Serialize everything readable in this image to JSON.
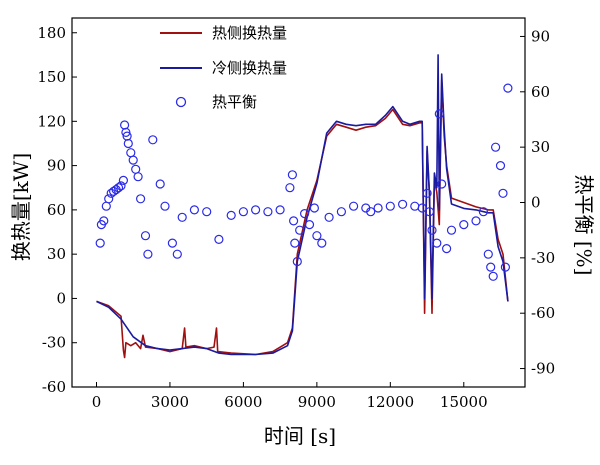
{
  "chart_data": {
    "type": "line",
    "xlabel": "时间 [s]",
    "ylabel": "换热量[kW]",
    "y2label": "热平衡 [%]",
    "xlim": [
      -1000,
      17500
    ],
    "ylim": [
      -60,
      190
    ],
    "y2lim": [
      -100,
      100
    ],
    "x_ticks": [
      0,
      3000,
      6000,
      9000,
      12000,
      15000
    ],
    "y_ticks": [
      -60,
      -30,
      0,
      30,
      60,
      90,
      120,
      150,
      180
    ],
    "y2_ticks": [
      -90,
      -60,
      -30,
      0,
      30,
      60,
      90
    ],
    "legend_position": "top-center",
    "colors": {
      "hot": "#a01010",
      "cold": "#1a1aa0",
      "balance": "#2a2ae8",
      "axis": "#000000"
    },
    "series": [
      {
        "name": "热侧换热量",
        "axis": "left",
        "style": "line",
        "points": [
          [
            0,
            -2
          ],
          [
            500,
            -5
          ],
          [
            1000,
            -12
          ],
          [
            1100,
            -35
          ],
          [
            1150,
            -40
          ],
          [
            1200,
            -30
          ],
          [
            1400,
            -32
          ],
          [
            1600,
            -30
          ],
          [
            1800,
            -34
          ],
          [
            1900,
            -25
          ],
          [
            2000,
            -33
          ],
          [
            2500,
            -34
          ],
          [
            3000,
            -36
          ],
          [
            3500,
            -34
          ],
          [
            3600,
            -20
          ],
          [
            3650,
            -33
          ],
          [
            4000,
            -32
          ],
          [
            4500,
            -34
          ],
          [
            4800,
            -33
          ],
          [
            4900,
            -20
          ],
          [
            4950,
            -36
          ],
          [
            5500,
            -37
          ],
          [
            6500,
            -38
          ],
          [
            7200,
            -36
          ],
          [
            7800,
            -30
          ],
          [
            8000,
            -20
          ],
          [
            8200,
            30
          ],
          [
            8600,
            60
          ],
          [
            9000,
            80
          ],
          [
            9400,
            110
          ],
          [
            9800,
            118
          ],
          [
            10200,
            116
          ],
          [
            10600,
            114
          ],
          [
            11000,
            116
          ],
          [
            11400,
            117
          ],
          [
            11800,
            122
          ],
          [
            12100,
            128
          ],
          [
            12500,
            118
          ],
          [
            12800,
            117
          ],
          [
            13200,
            119
          ],
          [
            13300,
            119
          ],
          [
            13400,
            -10
          ],
          [
            13500,
            100
          ],
          [
            13600,
            70
          ],
          [
            13700,
            -10
          ],
          [
            13800,
            80
          ],
          [
            13900,
            72
          ],
          [
            14000,
            50
          ],
          [
            14100,
            148
          ],
          [
            14200,
            110
          ],
          [
            14300,
            90
          ],
          [
            14500,
            68
          ],
          [
            15000,
            65
          ],
          [
            15500,
            62
          ],
          [
            16000,
            60
          ],
          [
            16200,
            60
          ],
          [
            16400,
            40
          ],
          [
            16600,
            30
          ],
          [
            16800,
            -2
          ]
        ]
      },
      {
        "name": "冷侧换热量",
        "axis": "left",
        "style": "line",
        "points": [
          [
            0,
            -2
          ],
          [
            500,
            -6
          ],
          [
            1000,
            -14
          ],
          [
            1500,
            -26
          ],
          [
            2000,
            -32
          ],
          [
            2500,
            -34
          ],
          [
            3000,
            -35
          ],
          [
            3500,
            -34
          ],
          [
            4000,
            -33
          ],
          [
            4500,
            -34
          ],
          [
            5000,
            -37
          ],
          [
            5500,
            -38
          ],
          [
            6500,
            -38
          ],
          [
            7200,
            -37
          ],
          [
            7800,
            -32
          ],
          [
            8000,
            -22
          ],
          [
            8200,
            25
          ],
          [
            8600,
            55
          ],
          [
            9000,
            78
          ],
          [
            9400,
            112
          ],
          [
            9800,
            120
          ],
          [
            10200,
            118
          ],
          [
            10600,
            117
          ],
          [
            11000,
            118
          ],
          [
            11400,
            118
          ],
          [
            11800,
            124
          ],
          [
            12100,
            130
          ],
          [
            12500,
            120
          ],
          [
            12800,
            118
          ],
          [
            13200,
            120
          ],
          [
            13300,
            120
          ],
          [
            13400,
            0
          ],
          [
            13500,
            103
          ],
          [
            13600,
            70
          ],
          [
            13700,
            0
          ],
          [
            13800,
            85
          ],
          [
            13900,
            75
          ],
          [
            13950,
            165
          ],
          [
            14000,
            60
          ],
          [
            14100,
            152
          ],
          [
            14200,
            115
          ],
          [
            14300,
            88
          ],
          [
            14500,
            64
          ],
          [
            15000,
            61
          ],
          [
            15500,
            60
          ],
          [
            16000,
            58
          ],
          [
            16200,
            58
          ],
          [
            16400,
            35
          ],
          [
            16600,
            25
          ],
          [
            16800,
            -2
          ]
        ]
      },
      {
        "name": "热平衡",
        "axis": "right",
        "style": "markers",
        "points": [
          [
            150,
            -22
          ],
          [
            200,
            -12
          ],
          [
            300,
            -10
          ],
          [
            400,
            -2
          ],
          [
            500,
            2
          ],
          [
            600,
            5
          ],
          [
            700,
            6
          ],
          [
            800,
            7
          ],
          [
            900,
            8
          ],
          [
            1000,
            9
          ],
          [
            1100,
            12
          ],
          [
            1150,
            42
          ],
          [
            1200,
            38
          ],
          [
            1250,
            36
          ],
          [
            1300,
            32
          ],
          [
            1400,
            27
          ],
          [
            1500,
            23
          ],
          [
            1600,
            18
          ],
          [
            1700,
            14
          ],
          [
            1800,
            2
          ],
          [
            2000,
            -18
          ],
          [
            2100,
            -28
          ],
          [
            2300,
            34
          ],
          [
            2600,
            10
          ],
          [
            2800,
            -2
          ],
          [
            3100,
            -22
          ],
          [
            3300,
            -28
          ],
          [
            3500,
            -8
          ],
          [
            4000,
            -4
          ],
          [
            4500,
            -5
          ],
          [
            5000,
            -20
          ],
          [
            5500,
            -7
          ],
          [
            6000,
            -5
          ],
          [
            6500,
            -4
          ],
          [
            7000,
            -5
          ],
          [
            7500,
            -4
          ],
          [
            7900,
            8
          ],
          [
            8000,
            15
          ],
          [
            8050,
            -10
          ],
          [
            8100,
            -22
          ],
          [
            8200,
            -32
          ],
          [
            8300,
            -15
          ],
          [
            8500,
            -6
          ],
          [
            8700,
            -12
          ],
          [
            8900,
            -3
          ],
          [
            9000,
            -18
          ],
          [
            9200,
            -22
          ],
          [
            9500,
            -8
          ],
          [
            10000,
            -5
          ],
          [
            10500,
            -2
          ],
          [
            11000,
            -3
          ],
          [
            11200,
            -5
          ],
          [
            11500,
            -3
          ],
          [
            12000,
            -2
          ],
          [
            12500,
            -1
          ],
          [
            13000,
            -2
          ],
          [
            13300,
            -3
          ],
          [
            13500,
            5
          ],
          [
            13600,
            -5
          ],
          [
            13700,
            -15
          ],
          [
            13900,
            -22
          ],
          [
            14000,
            48
          ],
          [
            14100,
            10
          ],
          [
            14300,
            -25
          ],
          [
            14500,
            -15
          ],
          [
            15000,
            -12
          ],
          [
            15500,
            -10
          ],
          [
            15800,
            -5
          ],
          [
            16000,
            -28
          ],
          [
            16100,
            -35
          ],
          [
            16200,
            -40
          ],
          [
            16300,
            30
          ],
          [
            16500,
            20
          ],
          [
            16600,
            5
          ],
          [
            16700,
            -35
          ],
          [
            16800,
            62
          ]
        ]
      }
    ]
  }
}
